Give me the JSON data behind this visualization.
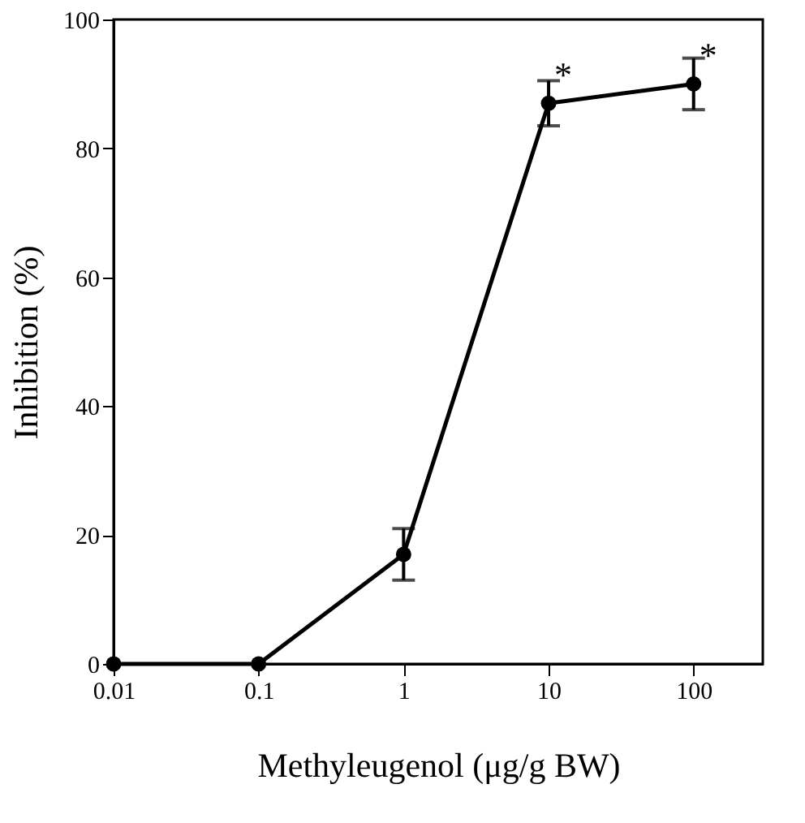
{
  "chart_data": {
    "type": "line",
    "xlabel": "Methyleugenol (μg/g BW)",
    "ylabel": "Inhibition (%)",
    "log": "x",
    "x": [
      0.01,
      0.1,
      1,
      10,
      100
    ],
    "series": [
      {
        "color": "#000000",
        "values": [
          0,
          0,
          17,
          87,
          90
        ],
        "errors": [
          null,
          null,
          4,
          3.5,
          4
        ]
      }
    ],
    "xlim": [
      0.01,
      300
    ],
    "xticks": [
      0.01,
      0.1,
      1,
      10,
      100
    ],
    "ylim": [
      0,
      100
    ],
    "yticks": [
      0,
      20,
      40,
      60,
      80,
      100
    ],
    "grid": false,
    "marker": "circle",
    "line_style": "solid",
    "annotations": [
      {
        "text": "*",
        "x": 10,
        "y": 87
      },
      {
        "text": "*",
        "x": 100,
        "y": 90
      }
    ]
  }
}
